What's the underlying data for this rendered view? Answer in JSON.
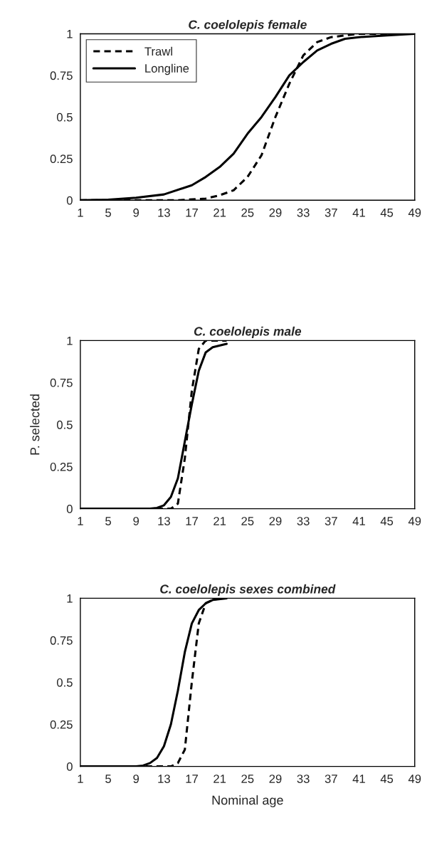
{
  "chart_data": [
    {
      "type": "line",
      "title": "C. coelolepis female",
      "xlim": [
        1,
        49
      ],
      "xticks": [
        1,
        5,
        9,
        13,
        17,
        21,
        25,
        29,
        33,
        37,
        41,
        45,
        49
      ],
      "ylim": [
        0,
        1
      ],
      "yticks": [
        0,
        0.25,
        0.5,
        0.75,
        1
      ],
      "legend": "top left",
      "grid": false,
      "series": [
        {
          "name": "Trawl",
          "color": "#000000",
          "line_style": "dashed",
          "x": [
            1,
            15,
            19,
            21,
            23,
            25,
            27,
            29,
            31,
            33,
            35,
            37,
            41,
            49
          ],
          "values": [
            0,
            0,
            0.01,
            0.03,
            0.06,
            0.14,
            0.27,
            0.5,
            0.7,
            0.87,
            0.95,
            0.98,
            1,
            1
          ]
        },
        {
          "name": "Longline",
          "color": "#000000",
          "line_style": "solid",
          "x": [
            1,
            5,
            9,
            13,
            17,
            19,
            21,
            23,
            25,
            27,
            29,
            31,
            33,
            35,
            37,
            39,
            41,
            45,
            49
          ],
          "values": [
            0,
            0.003,
            0.015,
            0.035,
            0.09,
            0.14,
            0.2,
            0.28,
            0.4,
            0.5,
            0.62,
            0.75,
            0.83,
            0.9,
            0.94,
            0.97,
            0.98,
            0.99,
            1
          ]
        }
      ]
    },
    {
      "type": "line",
      "title": "C. coelolepis male",
      "ylabel": "P. selected",
      "xlim": [
        1,
        49
      ],
      "xticks": [
        1,
        5,
        9,
        13,
        17,
        21,
        25,
        29,
        33,
        37,
        41,
        45,
        49
      ],
      "ylim": [
        0,
        1
      ],
      "yticks": [
        0,
        0.25,
        0.5,
        0.75,
        1
      ],
      "grid": false,
      "series": [
        {
          "color": "#000000",
          "line_style": "dashed",
          "x": [
            1,
            14,
            15,
            16,
            17,
            18,
            19,
            22
          ],
          "values": [
            0,
            0,
            0.03,
            0.3,
            0.7,
            0.95,
            1,
            1
          ]
        },
        {
          "color": "#000000",
          "line_style": "solid",
          "x": [
            1,
            11,
            12,
            13,
            14,
            15,
            16,
            17,
            18,
            19,
            20,
            22
          ],
          "values": [
            0,
            0,
            0.005,
            0.02,
            0.07,
            0.18,
            0.4,
            0.62,
            0.82,
            0.93,
            0.96,
            0.98
          ]
        }
      ]
    },
    {
      "type": "line",
      "title": "C. coelolepis sexes combined",
      "xlabel": "Nominal age",
      "xlim": [
        1,
        49
      ],
      "xticks": [
        1,
        5,
        9,
        13,
        17,
        21,
        25,
        29,
        33,
        37,
        41,
        45,
        49
      ],
      "ylim": [
        0,
        1
      ],
      "yticks": [
        0,
        0.25,
        0.5,
        0.75,
        1
      ],
      "grid": false,
      "series": [
        {
          "color": "#000000",
          "line_style": "dashed",
          "x": [
            1,
            14,
            15,
            16,
            17,
            18,
            19,
            20,
            21
          ],
          "values": [
            0,
            0,
            0.02,
            0.1,
            0.5,
            0.85,
            0.97,
            0.99,
            1
          ]
        },
        {
          "color": "#000000",
          "line_style": "solid",
          "x": [
            1,
            9,
            10,
            11,
            12,
            13,
            14,
            15,
            16,
            17,
            18,
            19,
            20,
            22
          ],
          "values": [
            0,
            0,
            0.005,
            0.02,
            0.05,
            0.12,
            0.25,
            0.45,
            0.68,
            0.85,
            0.93,
            0.97,
            0.99,
            1
          ]
        }
      ]
    }
  ]
}
